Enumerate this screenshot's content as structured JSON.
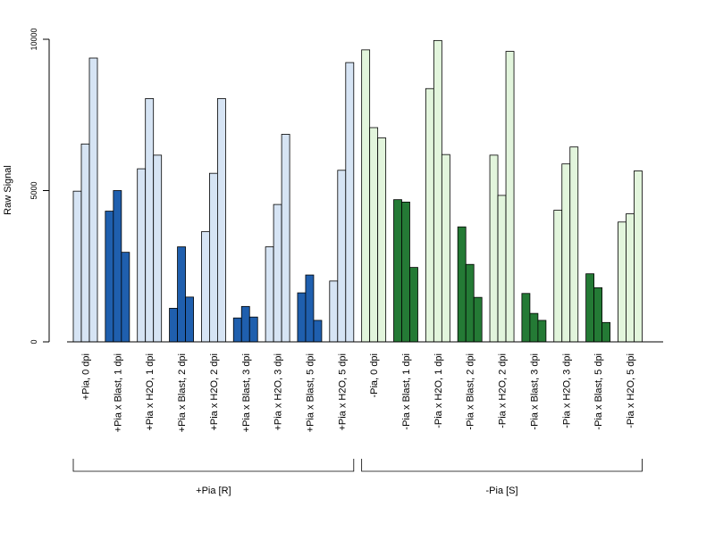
{
  "chart_data": {
    "type": "bar",
    "ylabel": "Raw Signal",
    "ylim": [
      0,
      10000
    ],
    "yticks": [
      0,
      5000,
      10000
    ],
    "categories": [
      "+Pia, 0 dpi",
      "+Pia x Blast, 1 dpi",
      "+Pia x H2O, 1 dpi",
      "+Pia x Blast, 2 dpi",
      "+Pia x H2O, 2 dpi",
      "+Pia x Blast, 3 dpi",
      "+Pia x H2O, 3 dpi",
      "+Pia x Blast, 5 dpi",
      "+Pia x H2O, 5 dpi",
      "-Pia, 0 dpi",
      "-Pia x Blast, 1 dpi",
      "-Pia x H2O, 1 dpi",
      "-Pia x Blast, 2 dpi",
      "-Pia x H2O, 2 dpi",
      "-Pia x Blast, 3 dpi",
      "-Pia x H2O, 3 dpi",
      "-Pia x Blast, 5 dpi",
      "-Pia x H2O, 5 dpi"
    ],
    "replicate_values": [
      [
        4980,
        6540,
        9380
      ],
      [
        4320,
        5000,
        2960
      ],
      [
        5720,
        8040,
        6170
      ],
      [
        1110,
        3140,
        1480
      ],
      [
        3640,
        5570,
        8040
      ],
      [
        790,
        1170,
        820
      ],
      [
        3140,
        4540,
        6860
      ],
      [
        1620,
        2210,
        710
      ],
      [
        2010,
        5670,
        9230
      ],
      [
        9650,
        7080,
        6740
      ],
      [
        4700,
        4620,
        2460
      ],
      [
        8370,
        9960,
        6190
      ],
      [
        3800,
        2560,
        1470
      ],
      [
        6170,
        4840,
        9600
      ],
      [
        1600,
        940,
        710
      ],
      [
        4350,
        5880,
        6440
      ],
      [
        2250,
        1790,
        640
      ],
      [
        3960,
        4230,
        5650
      ]
    ],
    "bar_colors": [
      "#d6e4f4",
      "#1f5fae",
      "#d6e4f4",
      "#1f5fae",
      "#d6e4f4",
      "#1f5fae",
      "#d6e4f4",
      "#1f5fae",
      "#d6e4f4",
      "#e2f5dc",
      "#247a35",
      "#e2f5dc",
      "#247a35",
      "#e2f5dc",
      "#247a35",
      "#e2f5dc",
      "#247a35",
      "#e2f5dc"
    ],
    "groups": [
      {
        "label": "+Pia [R]",
        "from_index": 0,
        "to_index": 8
      },
      {
        "label": "-Pia [S]",
        "from_index": 9,
        "to_index": 17
      }
    ]
  }
}
